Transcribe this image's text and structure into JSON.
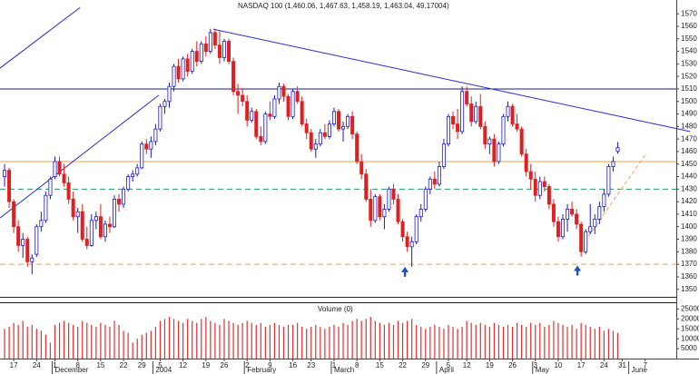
{
  "chart_data": {
    "type": "candlestick",
    "title": "NASDAQ 100 (1,460.06, 1,467.63, 1,458.19, 1,463.04, 49.17004)",
    "ylim": [
      1344,
      1581
    ],
    "yticks": [
      1350,
      1360,
      1370,
      1380,
      1390,
      1400,
      1410,
      1420,
      1430,
      1440,
      1450,
      1460,
      1470,
      1480,
      1490,
      1500,
      1510,
      1520,
      1530,
      1540,
      1550,
      1560,
      1570
    ],
    "xlim": [
      -1,
      146.8
    ],
    "up_color": "#1a1acc",
    "down_color": "#e02020",
    "xticks": [
      {
        "value": 2,
        "label": "17"
      },
      {
        "value": 7,
        "label": "24"
      },
      {
        "value": 11,
        "label": "1"
      },
      {
        "value": 16,
        "label": "8"
      },
      {
        "value": 21,
        "label": "15"
      },
      {
        "value": 26,
        "label": "22"
      },
      {
        "value": 30,
        "label": "29"
      },
      {
        "value": 34,
        "label": "5"
      },
      {
        "value": 39,
        "label": "12"
      },
      {
        "value": 44,
        "label": "19"
      },
      {
        "value": 48,
        "label": "26"
      },
      {
        "value": 53,
        "label": "2"
      },
      {
        "value": 58,
        "label": "9"
      },
      {
        "value": 63,
        "label": "16"
      },
      {
        "value": 67,
        "label": "23"
      },
      {
        "value": 72,
        "label": "1"
      },
      {
        "value": 77,
        "label": "8"
      },
      {
        "value": 82,
        "label": "15"
      },
      {
        "value": 87,
        "label": "22"
      },
      {
        "value": 92,
        "label": "29"
      },
      {
        "value": 97,
        "label": "5"
      },
      {
        "value": 101,
        "label": "12"
      },
      {
        "value": 106,
        "label": "19"
      },
      {
        "value": 111,
        "label": "26"
      },
      {
        "value": 116,
        "label": "3"
      },
      {
        "value": 121,
        "label": "10"
      },
      {
        "value": 126,
        "label": "17"
      },
      {
        "value": 131,
        "label": "24"
      },
      {
        "value": 135,
        "label": "31"
      },
      {
        "value": 140,
        "label": "7"
      }
    ],
    "month_ticks": [
      {
        "value": 11,
        "label": "December"
      },
      {
        "value": 33,
        "label": "2004"
      },
      {
        "value": 53,
        "label": "February"
      },
      {
        "value": 72,
        "label": "March"
      },
      {
        "value": 95,
        "label": "April"
      },
      {
        "value": 116,
        "label": "May"
      },
      {
        "value": 137,
        "label": "June"
      }
    ],
    "ohlc": [
      [
        1440,
        1450,
        1432,
        1445
      ],
      [
        1445,
        1447,
        1415,
        1420
      ],
      [
        1420,
        1422,
        1395,
        1400
      ],
      [
        1400,
        1405,
        1380,
        1385
      ],
      [
        1385,
        1395,
        1375,
        1390
      ],
      [
        1390,
        1392,
        1368,
        1372
      ],
      [
        1372,
        1378,
        1362,
        1375
      ],
      [
        1378,
        1402,
        1376,
        1400
      ],
      [
        1400,
        1412,
        1396,
        1405
      ],
      [
        1405,
        1428,
        1403,
        1425
      ],
      [
        1425,
        1440,
        1422,
        1438
      ],
      [
        1440,
        1456,
        1438,
        1452
      ],
      [
        1452,
        1456,
        1440,
        1442
      ],
      [
        1442,
        1450,
        1432,
        1435
      ],
      [
        1435,
        1440,
        1418,
        1422
      ],
      [
        1422,
        1428,
        1405,
        1408
      ],
      [
        1408,
        1415,
        1395,
        1412
      ],
      [
        1412,
        1418,
        1388,
        1390
      ],
      [
        1390,
        1400,
        1382,
        1385
      ],
      [
        1385,
        1410,
        1384,
        1405
      ],
      [
        1405,
        1412,
        1398,
        1408
      ],
      [
        1408,
        1418,
        1390,
        1392
      ],
      [
        1392,
        1405,
        1388,
        1402
      ],
      [
        1402,
        1408,
        1395,
        1400
      ],
      [
        1400,
        1425,
        1399,
        1422
      ],
      [
        1422,
        1426,
        1412,
        1418
      ],
      [
        1418,
        1432,
        1415,
        1430
      ],
      [
        1430,
        1442,
        1428,
        1440
      ],
      [
        1440,
        1445,
        1436,
        1442
      ],
      [
        1442,
        1450,
        1440,
        1447
      ],
      [
        1447,
        1468,
        1446,
        1466
      ],
      [
        1466,
        1470,
        1458,
        1462
      ],
      [
        1462,
        1472,
        1455,
        1468
      ],
      [
        1468,
        1482,
        1465,
        1478
      ],
      [
        1478,
        1498,
        1476,
        1496
      ],
      [
        1496,
        1502,
        1490,
        1500
      ],
      [
        1500,
        1515,
        1495,
        1512
      ],
      [
        1512,
        1530,
        1508,
        1528
      ],
      [
        1528,
        1534,
        1515,
        1518
      ],
      [
        1518,
        1536,
        1516,
        1534
      ],
      [
        1534,
        1538,
        1520,
        1524
      ],
      [
        1524,
        1542,
        1522,
        1540
      ],
      [
        1540,
        1548,
        1528,
        1532
      ],
      [
        1532,
        1548,
        1530,
        1546
      ],
      [
        1546,
        1552,
        1536,
        1540
      ],
      [
        1540,
        1558,
        1538,
        1555
      ],
      [
        1555,
        1558,
        1542,
        1545
      ],
      [
        1545,
        1556,
        1530,
        1535
      ],
      [
        1535,
        1550,
        1532,
        1548
      ],
      [
        1548,
        1550,
        1530,
        1532
      ],
      [
        1532,
        1535,
        1505,
        1508
      ],
      [
        1508,
        1514,
        1490,
        1505
      ],
      [
        1505,
        1510,
        1496,
        1500
      ],
      [
        1500,
        1505,
        1480,
        1485
      ],
      [
        1485,
        1495,
        1483,
        1492
      ],
      [
        1492,
        1494,
        1470,
        1472
      ],
      [
        1472,
        1480,
        1465,
        1468
      ],
      [
        1468,
        1492,
        1466,
        1490
      ],
      [
        1490,
        1500,
        1485,
        1488
      ],
      [
        1488,
        1505,
        1486,
        1502
      ],
      [
        1502,
        1515,
        1498,
        1512
      ],
      [
        1512,
        1514,
        1500,
        1504
      ],
      [
        1504,
        1506,
        1485,
        1488
      ],
      [
        1488,
        1510,
        1486,
        1508
      ],
      [
        1508,
        1512,
        1498,
        1500
      ],
      [
        1500,
        1504,
        1480,
        1482
      ],
      [
        1482,
        1486,
        1470,
        1475
      ],
      [
        1475,
        1478,
        1460,
        1462
      ],
      [
        1462,
        1470,
        1455,
        1466
      ],
      [
        1466,
        1478,
        1464,
        1475
      ],
      [
        1475,
        1482,
        1470,
        1472
      ],
      [
        1472,
        1485,
        1470,
        1482
      ],
      [
        1482,
        1495,
        1480,
        1492
      ],
      [
        1492,
        1494,
        1476,
        1478
      ],
      [
        1478,
        1484,
        1468,
        1480
      ],
      [
        1480,
        1490,
        1478,
        1488
      ],
      [
        1488,
        1492,
        1470,
        1474
      ],
      [
        1474,
        1476,
        1450,
        1452
      ],
      [
        1452,
        1458,
        1438,
        1442
      ],
      [
        1442,
        1446,
        1420,
        1422
      ],
      [
        1422,
        1430,
        1400,
        1405
      ],
      [
        1405,
        1426,
        1403,
        1424
      ],
      [
        1424,
        1426,
        1405,
        1408
      ],
      [
        1408,
        1418,
        1398,
        1414
      ],
      [
        1414,
        1432,
        1412,
        1430
      ],
      [
        1430,
        1434,
        1418,
        1422
      ],
      [
        1422,
        1426,
        1402,
        1404
      ],
      [
        1404,
        1406,
        1388,
        1392
      ],
      [
        1392,
        1396,
        1380,
        1384
      ],
      [
        1384,
        1392,
        1368,
        1388
      ],
      [
        1388,
        1410,
        1386,
        1408
      ],
      [
        1408,
        1418,
        1404,
        1414
      ],
      [
        1414,
        1432,
        1412,
        1430
      ],
      [
        1430,
        1440,
        1426,
        1438
      ],
      [
        1438,
        1444,
        1430,
        1434
      ],
      [
        1434,
        1452,
        1432,
        1448
      ],
      [
        1448,
        1470,
        1446,
        1466
      ],
      [
        1466,
        1490,
        1464,
        1488
      ],
      [
        1488,
        1492,
        1478,
        1482
      ],
      [
        1482,
        1494,
        1470,
        1476
      ],
      [
        1476,
        1512,
        1474,
        1508
      ],
      [
        1508,
        1512,
        1496,
        1498
      ],
      [
        1498,
        1504,
        1480,
        1484
      ],
      [
        1484,
        1500,
        1482,
        1496
      ],
      [
        1496,
        1506,
        1478,
        1480
      ],
      [
        1480,
        1484,
        1462,
        1466
      ],
      [
        1466,
        1472,
        1458,
        1470
      ],
      [
        1470,
        1474,
        1448,
        1452
      ],
      [
        1452,
        1468,
        1450,
        1466
      ],
      [
        1466,
        1490,
        1464,
        1488
      ],
      [
        1488,
        1500,
        1484,
        1496
      ],
      [
        1496,
        1498,
        1480,
        1482
      ],
      [
        1482,
        1490,
        1476,
        1478
      ],
      [
        1478,
        1480,
        1456,
        1458
      ],
      [
        1458,
        1462,
        1440,
        1444
      ],
      [
        1444,
        1450,
        1430,
        1438
      ],
      [
        1438,
        1444,
        1420,
        1425
      ],
      [
        1425,
        1440,
        1422,
        1436
      ],
      [
        1436,
        1440,
        1428,
        1432
      ],
      [
        1432,
        1434,
        1414,
        1418
      ],
      [
        1418,
        1422,
        1400,
        1404
      ],
      [
        1404,
        1408,
        1388,
        1392
      ],
      [
        1392,
        1410,
        1390,
        1406
      ],
      [
        1406,
        1418,
        1396,
        1414
      ],
      [
        1414,
        1420,
        1408,
        1410
      ],
      [
        1410,
        1414,
        1398,
        1402
      ],
      [
        1402,
        1404,
        1376,
        1380
      ],
      [
        1380,
        1398,
        1378,
        1396
      ],
      [
        1396,
        1418,
        1394,
        1400
      ],
      [
        1400,
        1410,
        1394,
        1406
      ],
      [
        1406,
        1420,
        1402,
        1416
      ],
      [
        1416,
        1430,
        1412,
        1426
      ],
      [
        1426,
        1450,
        1424,
        1448
      ],
      [
        1448,
        1456,
        1444,
        1452
      ],
      [
        1460.06,
        1467.63,
        1458.19,
        1463.04
      ]
    ],
    "trendlines": [
      {
        "x": [
          45.6,
          149.8
        ],
        "y": [
          1557.7,
          1476
        ],
        "color": "#2a2ad0",
        "dash": false
      },
      {
        "x": [
          -1,
          33.7
        ],
        "y": [
          1407,
          1505
        ],
        "color": "#2a2ad0",
        "dash": false
      },
      {
        "x": [
          -1,
          16.5
        ],
        "y": [
          1526.6,
          1575
        ],
        "color": "#2a2ad0",
        "dash": false
      },
      {
        "x": [
          126,
          140.3
        ],
        "y": [
          1384,
          1459
        ],
        "color": "#f0a060",
        "dash": true
      }
    ],
    "hlines": [
      {
        "y": 1510,
        "color": "#1a1a9a",
        "dash": false
      },
      {
        "y": 1452,
        "color": "#f0a040",
        "dash": false
      },
      {
        "y": 1430,
        "color": "#20a060",
        "dash": true
      },
      {
        "y": 1370,
        "color": "#f0a060",
        "dash": true
      }
    ],
    "arrows": [
      {
        "x": 87.5,
        "y": 1368,
        "color": "#1a50c0"
      },
      {
        "x": 125.2,
        "y": 1369,
        "color": "#1a50c0"
      }
    ],
    "volume": {
      "label": "Volume (0)",
      "color": "#e03030",
      "ylim": [
        0,
        27000
      ],
      "yticks": [
        5000,
        10000,
        15000,
        20000,
        25000
      ],
      "values": [
        15000,
        16000,
        18000,
        17000,
        19000,
        16000,
        17000,
        15000,
        14000,
        12000,
        8000,
        17000,
        18000,
        19000,
        18000,
        17000,
        16000,
        19000,
        18000,
        17000,
        16000,
        18000,
        17000,
        16000,
        19000,
        17000,
        14000,
        13000,
        8000,
        10000,
        12000,
        13000,
        14000,
        16000,
        19000,
        20000,
        21000,
        20000,
        19000,
        18000,
        20000,
        19000,
        18000,
        20000,
        21000,
        19000,
        18000,
        17000,
        20000,
        19000,
        18000,
        17000,
        18000,
        19000,
        18000,
        17000,
        18000,
        16000,
        17000,
        18000,
        17000,
        16000,
        17000,
        17000,
        18000,
        16000,
        15000,
        16000,
        17000,
        16000,
        15000,
        16000,
        17000,
        16000,
        18000,
        17000,
        19000,
        20000,
        19000,
        20000,
        21000,
        19000,
        18000,
        17000,
        18000,
        17000,
        19000,
        18000,
        19000,
        20000,
        17000,
        16000,
        15000,
        16000,
        17000,
        16000,
        15000,
        17000,
        16000,
        15000,
        16000,
        19000,
        18000,
        17000,
        18000,
        17000,
        16000,
        18000,
        17000,
        16000,
        17000,
        16000,
        18000,
        17000,
        16000,
        18000,
        17000,
        18000,
        16000,
        17000,
        19000,
        18000,
        17000,
        16000,
        17000,
        15000,
        18000,
        17000,
        16000,
        15000,
        16000,
        14000,
        15000,
        14000,
        13000
      ]
    }
  }
}
